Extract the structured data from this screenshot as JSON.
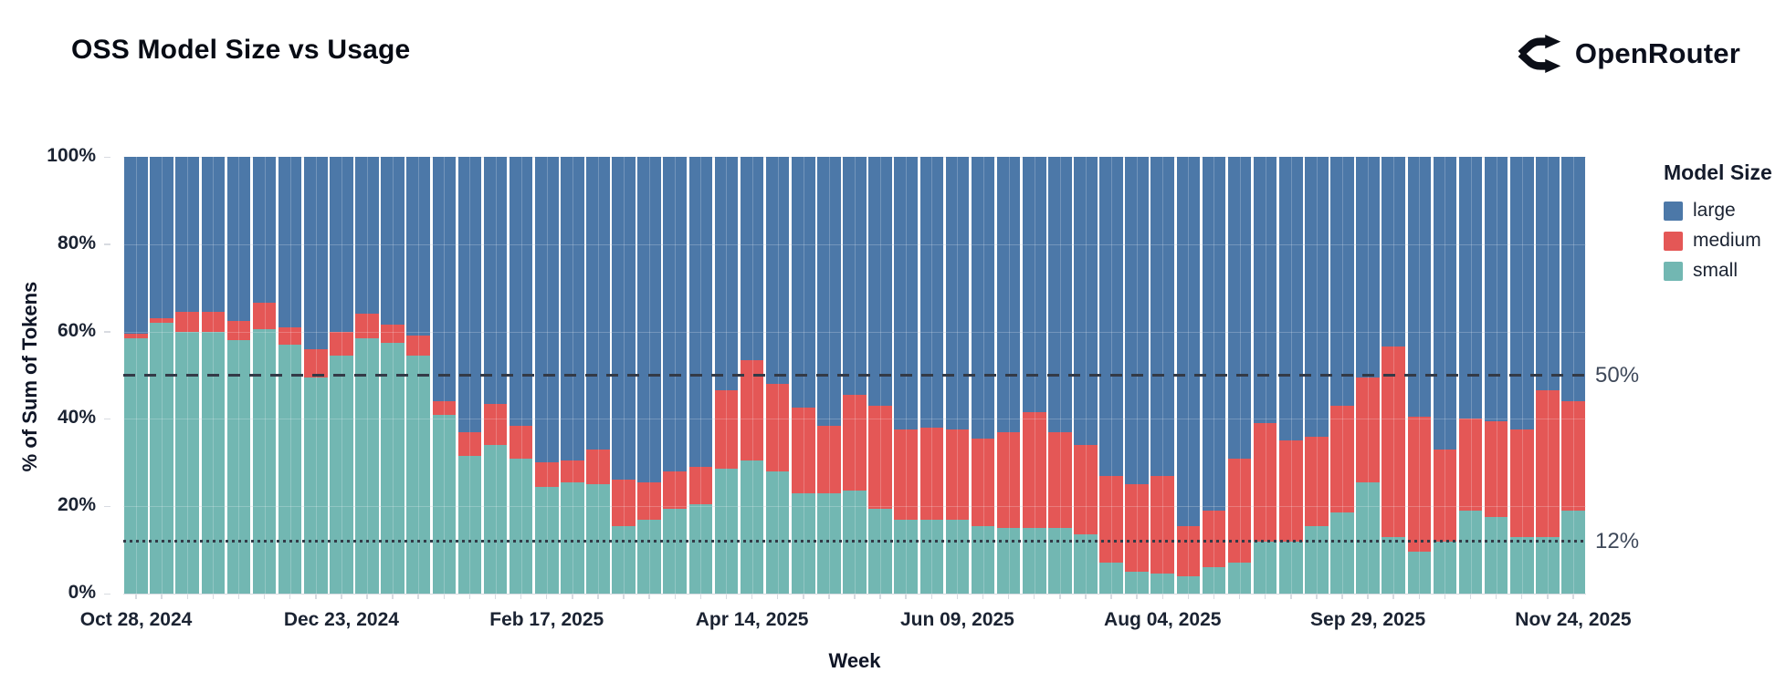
{
  "header": {
    "title": "OSS Model Size vs Usage",
    "brand": "OpenRouter"
  },
  "chart_data": {
    "type": "bar",
    "stacked": true,
    "title": "OSS Model Size vs Usage",
    "xlabel": "Week",
    "ylabel": "% of Sum of Tokens",
    "ylim": [
      0,
      100
    ],
    "grid": true,
    "legend_position": "right",
    "y_tick_labels": [
      "100%",
      "80%",
      "60%",
      "40%",
      "20%",
      "0%"
    ],
    "y_tick_values": [
      100,
      80,
      60,
      40,
      20,
      0
    ],
    "x_ticks": [
      {
        "index": 0,
        "label": "Oct 28, 2024"
      },
      {
        "index": 8,
        "label": "Dec 23, 2024"
      },
      {
        "index": 16,
        "label": "Feb 17, 2025"
      },
      {
        "index": 24,
        "label": "Apr 14, 2025"
      },
      {
        "index": 32,
        "label": "Jun 09, 2025"
      },
      {
        "index": 40,
        "label": "Aug 04, 2025"
      },
      {
        "index": 48,
        "label": "Sep 29, 2025"
      },
      {
        "index": 56,
        "label": "Nov 24, 2025"
      }
    ],
    "weeks": 57,
    "stack_order_bottom_to_top": [
      "small",
      "medium",
      "large"
    ],
    "series": [
      {
        "name": "small",
        "color": "#72b7b2",
        "values": [
          58.5,
          62,
          60,
          60,
          58,
          60.5,
          57,
          49.5,
          54.5,
          58.5,
          57.5,
          54.5,
          41,
          31.5,
          34,
          31,
          24.5,
          25.5,
          25,
          15.5,
          17,
          19.5,
          20.5,
          28.5,
          30.5,
          28,
          23,
          23,
          23.5,
          19.5,
          17,
          17,
          17,
          15.5,
          15,
          15,
          15,
          13.5,
          7,
          5,
          4.5,
          4,
          6,
          7,
          12,
          12,
          15.5,
          18.5,
          25.5,
          13,
          9.5,
          12,
          19,
          17.5,
          13,
          13,
          19
        ]
      },
      {
        "name": "medium",
        "color": "#e45756",
        "values": [
          1,
          1,
          4.5,
          4.5,
          4.5,
          6,
          4,
          6.5,
          5.5,
          5.5,
          4,
          4.5,
          3,
          5.5,
          9.5,
          7.5,
          5.5,
          5,
          8,
          10.5,
          8.5,
          8.5,
          8.5,
          18,
          23,
          20,
          19.5,
          15.5,
          22,
          23.5,
          20.5,
          21,
          20.5,
          20,
          22,
          26.5,
          22,
          20.5,
          20,
          20,
          22.5,
          11.5,
          13,
          24,
          27,
          23,
          20.5,
          24.5,
          24,
          43.5,
          31,
          21,
          21,
          22,
          24.5,
          33.5,
          25
        ]
      },
      {
        "name": "large",
        "color": "#4c78a8",
        "values": [
          40.5,
          37,
          35.5,
          35.5,
          37.5,
          33.5,
          39,
          44,
          40,
          36,
          38.5,
          41,
          56,
          63,
          56.5,
          61.5,
          70,
          69.5,
          67,
          74,
          74.5,
          72,
          71,
          53.5,
          46.5,
          52,
          57.5,
          61.5,
          54.5,
          57,
          62.5,
          62,
          62.5,
          64.5,
          63,
          58.5,
          63,
          66,
          73,
          75,
          73,
          84.5,
          81,
          69,
          61,
          65,
          64,
          57,
          50.5,
          43.5,
          59.5,
          67,
          60,
          60.5,
          62.5,
          53.5,
          56
        ]
      }
    ],
    "reference_lines": [
      {
        "value": 50,
        "label": "50%",
        "style": "dashed"
      },
      {
        "value": 12,
        "label": "12%",
        "style": "dotted"
      }
    ],
    "legend": {
      "title": "Model Size",
      "entries": [
        {
          "label": "large",
          "color": "#4c78a8"
        },
        {
          "label": "medium",
          "color": "#e45756"
        },
        {
          "label": "small",
          "color": "#72b7b2"
        }
      ]
    }
  }
}
